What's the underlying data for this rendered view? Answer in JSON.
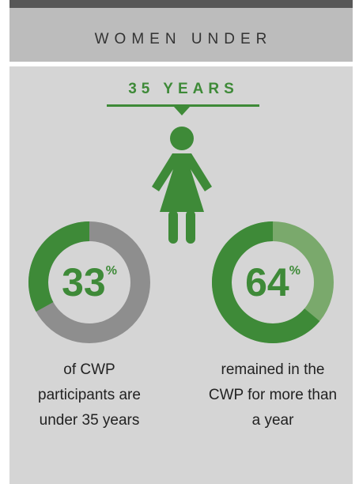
{
  "header": {
    "title": "WOMEN UNDER",
    "subtitle": "35 YEARS"
  },
  "chart_data": [
    {
      "type": "donut",
      "values": [
        33
      ],
      "unit": "%",
      "color": "#3e8a38",
      "track_color": "#8e8e8e",
      "caption": [
        "of CWP",
        "participants are",
        "under 35 years"
      ]
    },
    {
      "type": "donut",
      "values": [
        64
      ],
      "unit": "%",
      "color": "#3e8a38",
      "track_color": "#7aa96c",
      "caption": [
        "remained in the",
        "CWP for more than",
        "a year"
      ]
    }
  ]
}
